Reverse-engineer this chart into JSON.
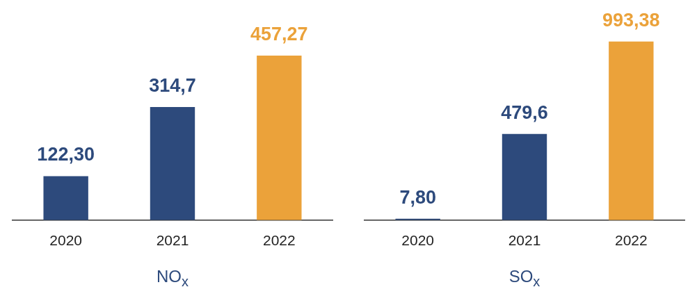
{
  "chart_data": [
    {
      "type": "bar",
      "xlabel": "NO$_{x}$",
      "categories": [
        "2020",
        "2021",
        "2022"
      ],
      "values": [
        122.3,
        314.7,
        457.27
      ],
      "value_labels": [
        "122,30",
        "314,7",
        "457,27"
      ],
      "colors": [
        "#2d4a7c",
        "#2d4a7c",
        "#eba23a"
      ],
      "grid": false,
      "legend": false
    },
    {
      "type": "bar",
      "xlabel": "SO$_{x}$",
      "categories": [
        "2020",
        "2021",
        "2022"
      ],
      "values": [
        7.8,
        479.6,
        993.38
      ],
      "value_labels": [
        "7,80",
        "479,6",
        "993,38"
      ],
      "colors": [
        "#2d4a7c",
        "#2d4a7c",
        "#eba23a"
      ],
      "grid": false,
      "legend": false
    }
  ]
}
